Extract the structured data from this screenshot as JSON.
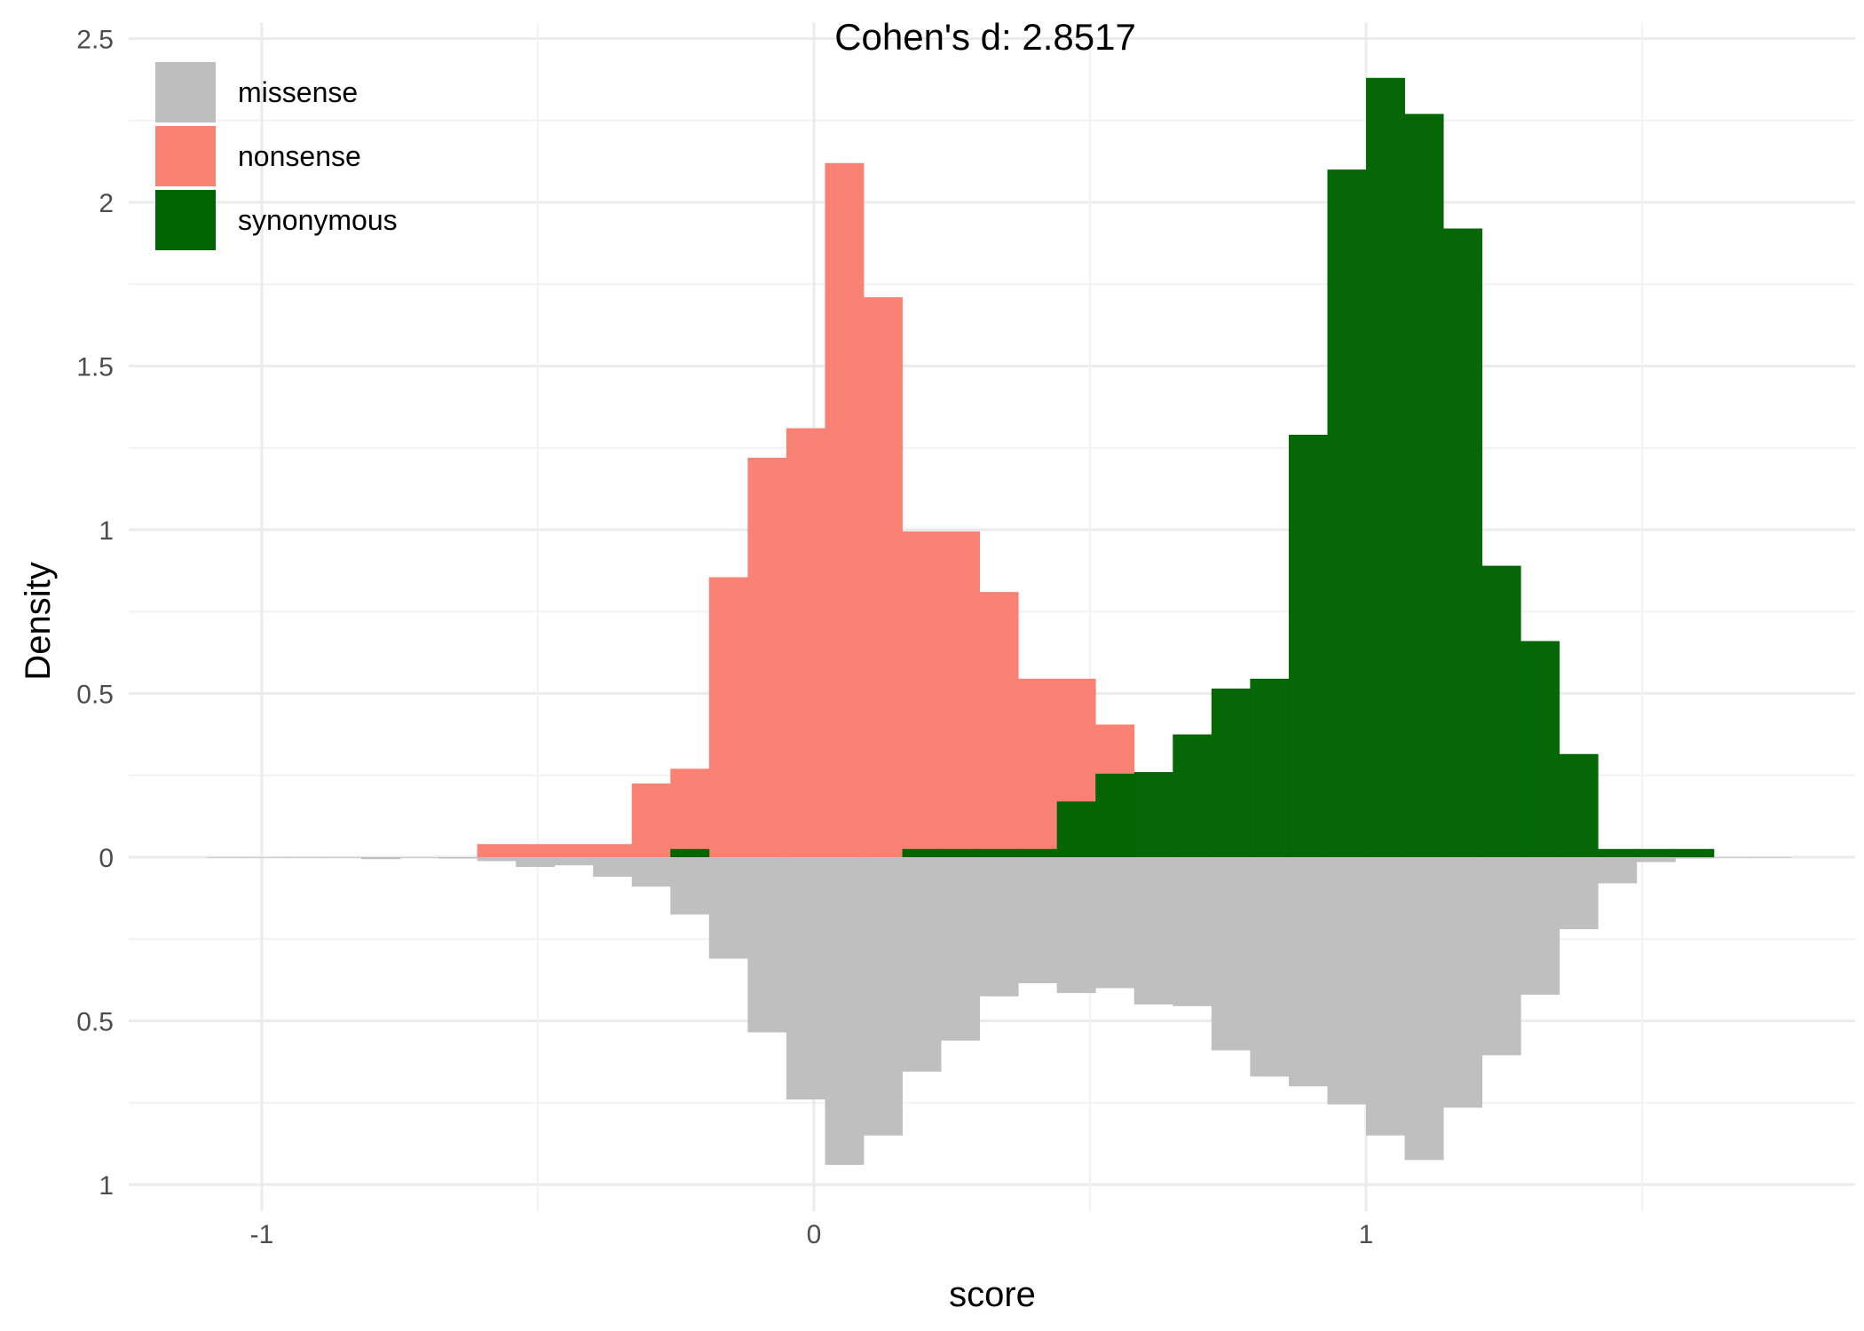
{
  "chart_data": {
    "type": "bar",
    "subtype": "mirrored-histogram",
    "title": "Cohen's d:  2.8517",
    "xlabel": "score",
    "ylabel": "Density",
    "xlim": [
      -1.23,
      1.88
    ],
    "ylim_top": [
      0,
      2.5
    ],
    "ylim_bottom": [
      0,
      1
    ],
    "x_ticks": [
      -1,
      0,
      1
    ],
    "x_tick_labels": [
      "-1",
      "0",
      "1"
    ],
    "y_ticks_top": [
      0,
      0.5,
      1,
      1.5,
      2,
      2.5
    ],
    "y_tick_labels_top": [
      "0",
      "0.5",
      "1",
      "1.5",
      "2",
      "2.5"
    ],
    "y_ticks_bottom": [
      0.5,
      1
    ],
    "y_tick_labels_bottom": [
      "0.5",
      "1"
    ],
    "grid": true,
    "legend_position": "top-left",
    "bin_width": 0.0707,
    "series": [
      {
        "name": "missense",
        "color": "#bebebe",
        "direction": "down",
        "bins": [
          [
            -1.1,
            0.002
          ],
          [
            -1.03,
            0.002
          ],
          [
            -0.96,
            0.002
          ],
          [
            -0.89,
            0.002
          ],
          [
            -0.82,
            0.006
          ],
          [
            -0.75,
            0.002
          ],
          [
            -0.68,
            0.004
          ],
          [
            -0.61,
            0.012
          ],
          [
            -0.54,
            0.03
          ],
          [
            -0.47,
            0.025
          ],
          [
            -0.4,
            0.06
          ],
          [
            -0.33,
            0.09
          ],
          [
            -0.26,
            0.175
          ],
          [
            -0.19,
            0.31
          ],
          [
            -0.12,
            0.535
          ],
          [
            -0.05,
            0.74
          ],
          [
            0.02,
            0.94
          ],
          [
            0.09,
            0.85
          ],
          [
            0.16,
            0.655
          ],
          [
            0.23,
            0.56
          ],
          [
            0.3,
            0.425
          ],
          [
            0.37,
            0.385
          ],
          [
            0.44,
            0.415
          ],
          [
            0.51,
            0.4
          ],
          [
            0.58,
            0.45
          ],
          [
            0.65,
            0.455
          ],
          [
            0.72,
            0.59
          ],
          [
            0.79,
            0.67
          ],
          [
            0.86,
            0.7
          ],
          [
            0.93,
            0.755
          ],
          [
            1.0,
            0.85
          ],
          [
            1.07,
            0.925
          ],
          [
            1.14,
            0.765
          ],
          [
            1.21,
            0.605
          ],
          [
            1.28,
            0.42
          ],
          [
            1.35,
            0.22
          ],
          [
            1.42,
            0.08
          ],
          [
            1.49,
            0.015
          ],
          [
            1.56,
            0.004
          ],
          [
            1.63,
            0.002
          ],
          [
            1.7,
            0.002
          ]
        ]
      },
      {
        "name": "nonsense",
        "color": "#fa8072",
        "direction": "up",
        "bins": [
          [
            -0.61,
            0.04
          ],
          [
            -0.54,
            0.04
          ],
          [
            -0.47,
            0.04
          ],
          [
            -0.4,
            0.04
          ],
          [
            -0.33,
            0.225
          ],
          [
            -0.26,
            0.27
          ],
          [
            -0.19,
            0.855
          ],
          [
            -0.12,
            1.22
          ],
          [
            -0.05,
            1.31
          ],
          [
            0.02,
            2.12
          ],
          [
            0.09,
            1.71
          ],
          [
            0.16,
            0.995
          ],
          [
            0.23,
            0.995
          ],
          [
            0.3,
            0.81
          ],
          [
            0.37,
            0.545
          ],
          [
            0.44,
            0.545
          ],
          [
            0.51,
            0.405
          ]
        ]
      },
      {
        "name": "synonymous",
        "color": "#006400",
        "direction": "up",
        "bins": [
          [
            -0.26,
            0.025
          ],
          [
            0.16,
            0.025
          ],
          [
            0.23,
            0.025
          ],
          [
            0.3,
            0.025
          ],
          [
            0.37,
            0.025
          ],
          [
            0.44,
            0.17
          ],
          [
            0.51,
            0.255
          ],
          [
            0.58,
            0.26
          ],
          [
            0.65,
            0.375
          ],
          [
            0.72,
            0.515
          ],
          [
            0.79,
            0.545
          ],
          [
            0.86,
            1.29
          ],
          [
            0.93,
            2.1
          ],
          [
            1.0,
            2.38
          ],
          [
            1.07,
            2.27
          ],
          [
            1.14,
            1.92
          ],
          [
            1.21,
            0.89
          ],
          [
            1.28,
            0.66
          ],
          [
            1.35,
            0.315
          ],
          [
            1.42,
            0.025
          ],
          [
            1.49,
            0.025
          ],
          [
            1.56,
            0.025
          ]
        ]
      }
    ]
  }
}
